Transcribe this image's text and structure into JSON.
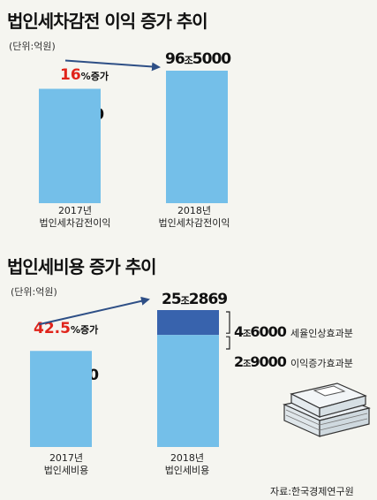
{
  "chart_data": [
    {
      "type": "bar",
      "title": "법인세차감전 이익 증가 추이",
      "unit": "(단위:억원)",
      "categories": [
        "2017년|법인세차감전이익",
        "2018년|법인세차감전이익"
      ],
      "values": [
        833000,
        965000
      ],
      "value_labels": [
        {
          "num": "83",
          "jo": "조",
          "rest": "3000"
        },
        {
          "num": "96",
          "jo": "조",
          "rest": "5000"
        }
      ],
      "increase": {
        "pct": "16",
        "suffix": "%증가"
      },
      "colors": {
        "bar": "#74bfe9",
        "arrow": "#2e4f86"
      }
    },
    {
      "type": "bar",
      "title": "법인세비용 증가 추이",
      "unit": "(단위:억원)",
      "categories": [
        "2017년|법인세비용",
        "2018년|법인세비용"
      ],
      "values": [
        177420,
        252869
      ],
      "value_labels": [
        {
          "num": "17",
          "jo": "조",
          "rest": "7420"
        },
        {
          "num": "25",
          "jo": "조",
          "rest": "2869"
        }
      ],
      "increase": {
        "pct": "42.5",
        "suffix": "%증가"
      },
      "stack_2018": [
        {
          "name": "세율인상효과분",
          "value": 46000,
          "num": "4",
          "jo": "조",
          "rest": "6000",
          "color": "#3863ad"
        },
        {
          "name": "이익증가효과분",
          "value": 29000,
          "num": "2",
          "jo": "조",
          "rest": "9000",
          "color": "#74bfe9"
        }
      ],
      "colors": {
        "bar": "#74bfe9",
        "arrow": "#2e4f86"
      }
    }
  ],
  "source": "자료:한국경제연구원"
}
